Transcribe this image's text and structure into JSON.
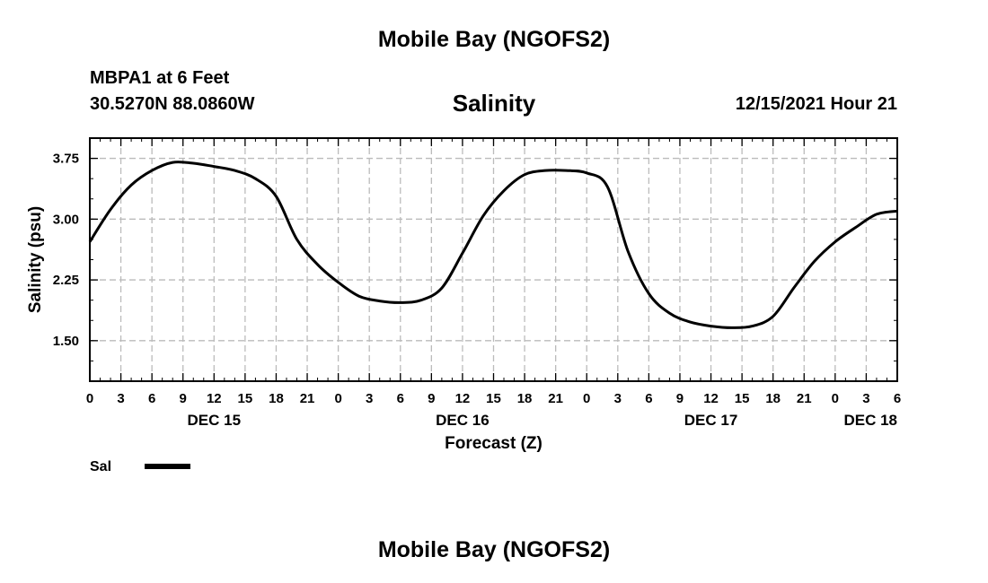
{
  "header": {
    "title": "Mobile Bay (NGOFS2)",
    "station": "MBPA1 at 6 Feet",
    "coordinates": "30.5270N  88.0860W",
    "datetime": "12/15/2021 Hour 21"
  },
  "footer": {
    "title": "Mobile Bay (NGOFS2)"
  },
  "chart_data": {
    "type": "line",
    "title": "Salinity",
    "xlabel": "Forecast (Z)",
    "ylabel": "Salinity (psu)",
    "xlim": [
      0,
      78
    ],
    "ylim": [
      1.0,
      4.0
    ],
    "x_tick_labels": [
      "0",
      "3",
      "6",
      "9",
      "12",
      "15",
      "18",
      "21",
      "0",
      "3",
      "6",
      "9",
      "12",
      "15",
      "18",
      "21",
      "0",
      "3",
      "6",
      "9",
      "12",
      "15",
      "18",
      "21",
      "0",
      "3",
      "6"
    ],
    "y_tick_values": [
      1.5,
      2.25,
      3.0,
      3.75
    ],
    "y_tick_labels": [
      "1.50",
      "2.25",
      "3.00",
      "3.75"
    ],
    "day_labels": [
      {
        "label": "DEC 15",
        "hour": 12
      },
      {
        "label": "DEC 16",
        "hour": 36
      },
      {
        "label": "DEC 17",
        "hour": 60
      },
      {
        "label": "DEC 18",
        "hour": 78
      }
    ],
    "grid": true,
    "legend_position": "bottom-left",
    "series": [
      {
        "name": "Sal",
        "color": "#000000",
        "x": [
          0,
          2,
          4,
          6,
          8,
          10,
          12,
          14,
          16,
          18,
          20,
          22,
          24,
          26,
          28,
          30,
          32,
          34,
          36,
          38,
          40,
          42,
          44,
          46,
          48,
          50,
          52,
          54,
          56,
          58,
          60,
          62,
          64,
          66,
          68,
          70,
          72,
          74,
          76,
          78
        ],
        "y": [
          2.72,
          3.12,
          3.42,
          3.6,
          3.7,
          3.69,
          3.65,
          3.6,
          3.5,
          3.28,
          2.75,
          2.44,
          2.22,
          2.05,
          1.99,
          1.97,
          2.0,
          2.15,
          2.58,
          3.04,
          3.35,
          3.55,
          3.6,
          3.6,
          3.57,
          3.4,
          2.6,
          2.08,
          1.84,
          1.73,
          1.68,
          1.66,
          1.68,
          1.8,
          2.15,
          2.48,
          2.72,
          2.9,
          3.06,
          3.1
        ]
      }
    ]
  }
}
